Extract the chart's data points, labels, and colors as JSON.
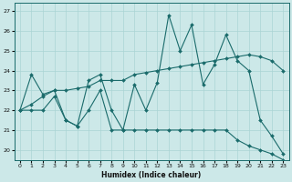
{
  "xlabel": "Humidex (Indice chaleur)",
  "bg_color": "#cce8e8",
  "line_color": "#1a6b6b",
  "grid_color": "#aad4d4",
  "ylim": [
    19.5,
    27.4
  ],
  "xlim": [
    -0.5,
    23.5
  ],
  "yticks": [
    20,
    21,
    22,
    23,
    24,
    25,
    26,
    27
  ],
  "xticks": [
    0,
    1,
    2,
    3,
    4,
    5,
    6,
    7,
    8,
    9,
    10,
    11,
    12,
    13,
    14,
    15,
    16,
    17,
    18,
    19,
    20,
    21,
    22,
    23
  ],
  "series1": [
    22,
    23.8,
    22.8,
    23.0,
    21.5,
    21.2,
    23.5,
    23.8,
    22.0,
    21.0,
    23.3,
    22.0,
    23.4,
    26.8,
    25.0,
    26.3,
    23.3,
    24.3,
    25.8,
    24.5,
    24.0,
    21.5,
    20.7,
    19.8
  ],
  "series2": [
    22.0,
    22.0,
    22.0,
    22.7,
    21.5,
    21.2,
    22.0,
    23.0,
    21.0,
    21.0,
    21.0,
    21.0,
    21.0,
    21.0,
    21.0,
    21.0,
    21.0,
    21.0,
    21.0,
    20.5,
    20.2,
    20.0,
    19.8,
    19.5
  ],
  "series3": [
    22.0,
    22.3,
    22.7,
    23.0,
    23.0,
    23.1,
    23.2,
    23.5,
    23.5,
    23.5,
    23.8,
    23.9,
    24.0,
    24.1,
    24.2,
    24.3,
    24.4,
    24.5,
    24.6,
    24.7,
    24.8,
    24.7,
    24.5,
    24.0
  ]
}
